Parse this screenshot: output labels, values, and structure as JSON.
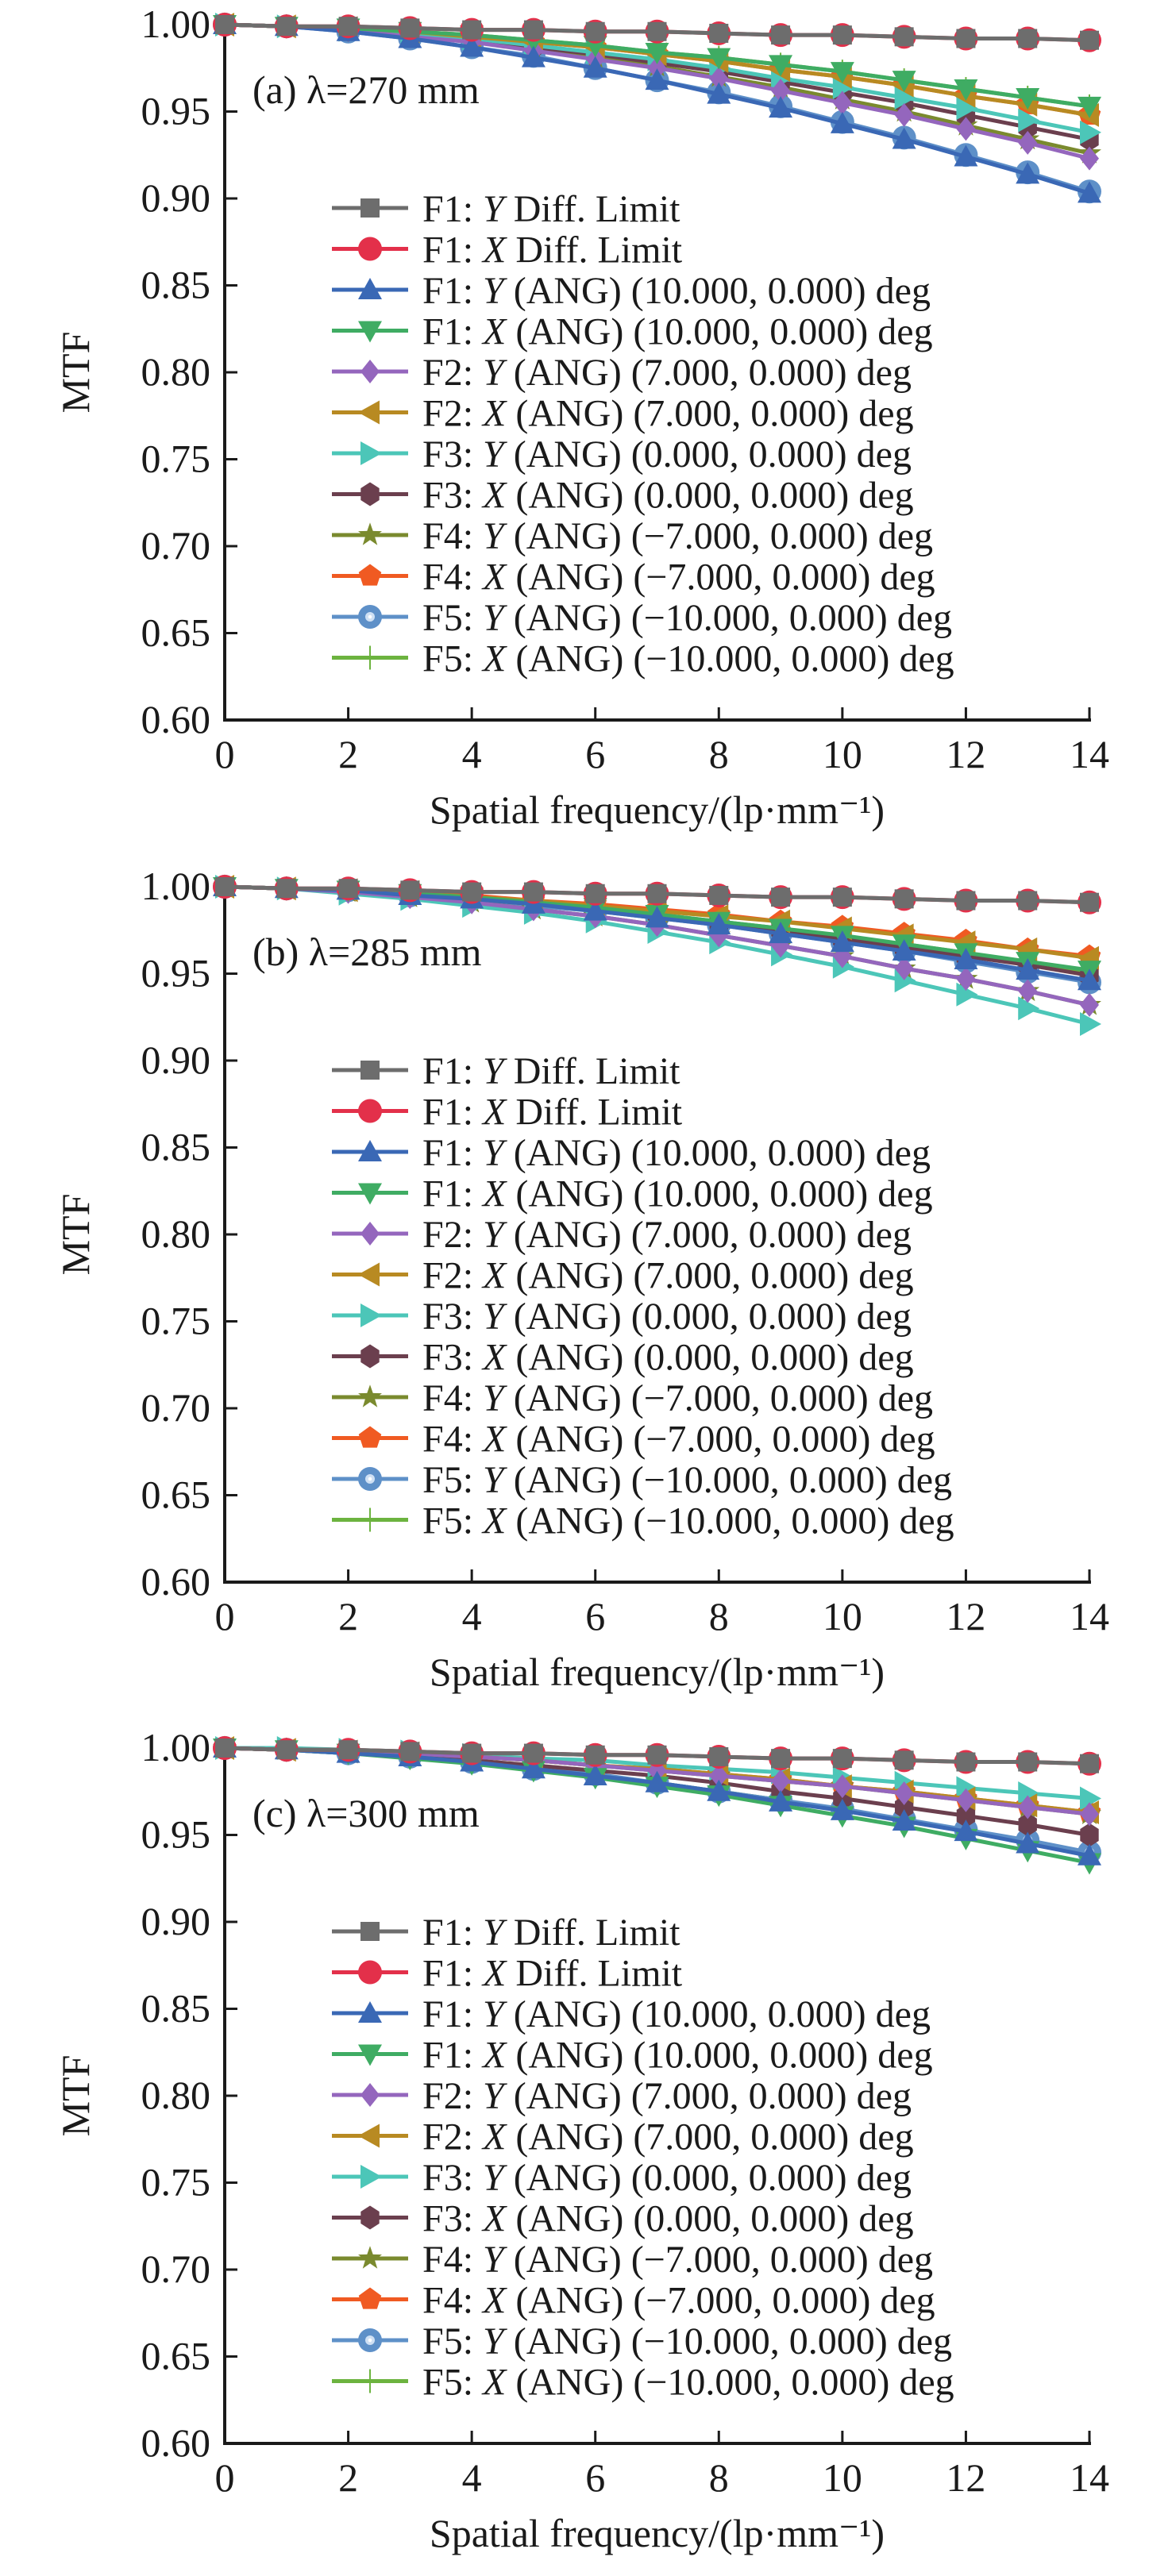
{
  "chart_data": [
    {
      "type": "line",
      "panel_label": "(a) λ=270 mm",
      "xlabel": "Spatial frequency/(lp·mm⁻¹)",
      "ylabel": "MTF",
      "xlim": [
        0,
        14
      ],
      "ylim": [
        0.6,
        1.0
      ],
      "xticks": [
        "0",
        "2",
        "4",
        "6",
        "8",
        "10",
        "12",
        "14"
      ],
      "yticks": [
        "0.60",
        "0.65",
        "0.70",
        "0.75",
        "0.80",
        "0.85",
        "0.90",
        "0.95",
        "1.00"
      ],
      "legend_position": "center",
      "x": [
        0,
        1,
        2,
        3,
        4,
        5,
        6,
        7,
        8,
        9,
        10,
        11,
        12,
        13,
        14
      ],
      "series": [
        {
          "key": "f1y_diff",
          "values": [
            1.0,
            0.999,
            0.999,
            0.998,
            0.997,
            0.997,
            0.996,
            0.996,
            0.995,
            0.994,
            0.994,
            0.993,
            0.992,
            0.992,
            0.991
          ]
        },
        {
          "key": "f1x_diff",
          "values": [
            1.0,
            0.999,
            0.999,
            0.998,
            0.997,
            0.997,
            0.996,
            0.996,
            0.995,
            0.994,
            0.994,
            0.993,
            0.992,
            0.992,
            0.991
          ]
        },
        {
          "key": "f1y_ang10",
          "values": [
            1.0,
            0.999,
            0.996,
            0.992,
            0.987,
            0.981,
            0.975,
            0.968,
            0.96,
            0.952,
            0.943,
            0.934,
            0.924,
            0.914,
            0.903
          ]
        },
        {
          "key": "f1x_ang10",
          "values": [
            1.0,
            0.999,
            0.998,
            0.996,
            0.994,
            0.991,
            0.988,
            0.984,
            0.981,
            0.977,
            0.973,
            0.968,
            0.963,
            0.958,
            0.953
          ]
        },
        {
          "key": "f2y_ang7",
          "values": [
            1.0,
            0.999,
            0.997,
            0.993,
            0.99,
            0.985,
            0.98,
            0.975,
            0.969,
            0.962,
            0.955,
            0.948,
            0.94,
            0.932,
            0.923
          ]
        },
        {
          "key": "f2x_ang7",
          "values": [
            1.0,
            0.999,
            0.998,
            0.996,
            0.993,
            0.99,
            0.987,
            0.983,
            0.979,
            0.974,
            0.97,
            0.965,
            0.959,
            0.954,
            0.948
          ]
        },
        {
          "key": "f3y_ang0",
          "values": [
            1.0,
            0.999,
            0.997,
            0.995,
            0.992,
            0.988,
            0.984,
            0.98,
            0.975,
            0.969,
            0.964,
            0.958,
            0.952,
            0.945,
            0.938
          ]
        },
        {
          "key": "f3x_ang0",
          "values": [
            1.0,
            0.999,
            0.997,
            0.994,
            0.991,
            0.987,
            0.983,
            0.978,
            0.973,
            0.967,
            0.961,
            0.955,
            0.948,
            0.941,
            0.934
          ]
        },
        {
          "key": "f4y_angm7",
          "values": [
            1.0,
            0.999,
            0.997,
            0.994,
            0.99,
            0.986,
            0.981,
            0.976,
            0.97,
            0.964,
            0.957,
            0.95,
            0.942,
            0.934,
            0.926
          ]
        },
        {
          "key": "f4x_angm7",
          "values": [
            1.0,
            0.999,
            0.998,
            0.996,
            0.993,
            0.99,
            0.987,
            0.983,
            0.979,
            0.974,
            0.97,
            0.965,
            0.959,
            0.954,
            0.948
          ]
        },
        {
          "key": "f5y_angm10",
          "values": [
            1.0,
            0.999,
            0.996,
            0.992,
            0.987,
            0.982,
            0.975,
            0.968,
            0.961,
            0.953,
            0.944,
            0.935,
            0.925,
            0.915,
            0.904
          ]
        },
        {
          "key": "f5x_angm10",
          "values": [
            1.0,
            0.999,
            0.998,
            0.996,
            0.994,
            0.991,
            0.988,
            0.984,
            0.981,
            0.977,
            0.973,
            0.968,
            0.963,
            0.958,
            0.953
          ]
        }
      ]
    },
    {
      "type": "line",
      "panel_label": "(b) λ=285 mm",
      "xlabel": "Spatial frequency/(lp·mm⁻¹)",
      "ylabel": "MTF",
      "xlim": [
        0,
        14
      ],
      "ylim": [
        0.6,
        1.0
      ],
      "xticks": [
        "0",
        "2",
        "4",
        "6",
        "8",
        "10",
        "12",
        "14"
      ],
      "yticks": [
        "0.60",
        "0.65",
        "0.70",
        "0.75",
        "0.80",
        "0.85",
        "0.90",
        "0.95",
        "1.00"
      ],
      "legend_position": "center",
      "x": [
        0,
        1,
        2,
        3,
        4,
        5,
        6,
        7,
        8,
        9,
        10,
        11,
        12,
        13,
        14
      ],
      "series": [
        {
          "key": "f1y_diff",
          "values": [
            1.0,
            0.999,
            0.999,
            0.998,
            0.997,
            0.997,
            0.996,
            0.996,
            0.995,
            0.994,
            0.994,
            0.993,
            0.992,
            0.992,
            0.991
          ]
        },
        {
          "key": "f1x_diff",
          "values": [
            1.0,
            0.999,
            0.999,
            0.998,
            0.997,
            0.997,
            0.996,
            0.996,
            0.995,
            0.994,
            0.994,
            0.993,
            0.992,
            0.992,
            0.991
          ]
        },
        {
          "key": "f1y_ang10",
          "values": [
            1.0,
            0.999,
            0.998,
            0.995,
            0.993,
            0.99,
            0.986,
            0.982,
            0.978,
            0.973,
            0.968,
            0.963,
            0.958,
            0.952,
            0.946
          ]
        },
        {
          "key": "f1x_ang10",
          "values": [
            1.0,
            0.999,
            0.998,
            0.996,
            0.994,
            0.991,
            0.988,
            0.984,
            0.98,
            0.976,
            0.972,
            0.967,
            0.962,
            0.957,
            0.952
          ]
        },
        {
          "key": "f2y_ang7",
          "values": [
            1.0,
            0.999,
            0.997,
            0.994,
            0.991,
            0.987,
            0.983,
            0.978,
            0.972,
            0.966,
            0.96,
            0.953,
            0.947,
            0.94,
            0.932
          ]
        },
        {
          "key": "f2x_ang7",
          "values": [
            1.0,
            0.999,
            0.998,
            0.997,
            0.994,
            0.992,
            0.989,
            0.986,
            0.983,
            0.98,
            0.976,
            0.972,
            0.968,
            0.964,
            0.959
          ]
        },
        {
          "key": "f3y_ang0",
          "values": [
            1.0,
            0.999,
            0.996,
            0.993,
            0.989,
            0.985,
            0.98,
            0.974,
            0.968,
            0.961,
            0.954,
            0.946,
            0.938,
            0.93,
            0.921
          ]
        },
        {
          "key": "f3x_ang0",
          "values": [
            1.0,
            0.999,
            0.998,
            0.996,
            0.993,
            0.99,
            0.987,
            0.983,
            0.979,
            0.975,
            0.97,
            0.965,
            0.96,
            0.955,
            0.949
          ]
        },
        {
          "key": "f4y_angm7",
          "values": [
            1.0,
            0.999,
            0.997,
            0.994,
            0.991,
            0.987,
            0.983,
            0.978,
            0.972,
            0.966,
            0.96,
            0.953,
            0.947,
            0.94,
            0.932
          ]
        },
        {
          "key": "f4x_angm7",
          "values": [
            1.0,
            0.999,
            0.998,
            0.997,
            0.995,
            0.992,
            0.99,
            0.987,
            0.984,
            0.98,
            0.977,
            0.973,
            0.969,
            0.964,
            0.96
          ]
        },
        {
          "key": "f5y_angm10",
          "values": [
            1.0,
            0.999,
            0.998,
            0.995,
            0.993,
            0.989,
            0.986,
            0.982,
            0.978,
            0.973,
            0.968,
            0.963,
            0.957,
            0.951,
            0.945
          ]
        },
        {
          "key": "f5x_angm10",
          "values": [
            1.0,
            0.999,
            0.998,
            0.996,
            0.993,
            0.991,
            0.987,
            0.984,
            0.98,
            0.976,
            0.971,
            0.967,
            0.962,
            0.956,
            0.951
          ]
        }
      ]
    },
    {
      "type": "line",
      "panel_label": "(c) λ=300 mm",
      "xlabel": "Spatial frequency/(lp·mm⁻¹)",
      "ylabel": "MTF",
      "xlim": [
        0,
        14
      ],
      "ylim": [
        0.6,
        1.0
      ],
      "xticks": [
        "0",
        "2",
        "4",
        "6",
        "8",
        "10",
        "12",
        "14"
      ],
      "yticks": [
        "0.60",
        "0.65",
        "0.70",
        "0.75",
        "0.80",
        "0.85",
        "0.90",
        "0.95",
        "1.00"
      ],
      "legend_position": "center",
      "x": [
        0,
        1,
        2,
        3,
        4,
        5,
        6,
        7,
        8,
        9,
        10,
        11,
        12,
        13,
        14
      ],
      "series": [
        {
          "key": "f1y_diff",
          "values": [
            1.0,
            0.999,
            0.999,
            0.998,
            0.997,
            0.997,
            0.996,
            0.996,
            0.995,
            0.994,
            0.994,
            0.993,
            0.992,
            0.992,
            0.991
          ]
        },
        {
          "key": "f1x_diff",
          "values": [
            1.0,
            0.999,
            0.999,
            0.998,
            0.997,
            0.997,
            0.996,
            0.996,
            0.995,
            0.994,
            0.994,
            0.993,
            0.992,
            0.992,
            0.991
          ]
        },
        {
          "key": "f1y_ang10",
          "values": [
            1.0,
            0.999,
            0.997,
            0.995,
            0.992,
            0.988,
            0.984,
            0.98,
            0.975,
            0.969,
            0.964,
            0.958,
            0.952,
            0.945,
            0.938
          ]
        },
        {
          "key": "f1x_ang10",
          "values": [
            1.0,
            0.999,
            0.997,
            0.994,
            0.991,
            0.987,
            0.983,
            0.978,
            0.973,
            0.967,
            0.961,
            0.955,
            0.948,
            0.941,
            0.934
          ]
        },
        {
          "key": "f2y_ang7",
          "values": [
            1.0,
            0.999,
            0.998,
            0.997,
            0.995,
            0.993,
            0.99,
            0.987,
            0.984,
            0.981,
            0.978,
            0.974,
            0.97,
            0.966,
            0.962
          ]
        },
        {
          "key": "f2x_ang7",
          "values": [
            1.0,
            0.999,
            0.998,
            0.997,
            0.995,
            0.993,
            0.99,
            0.988,
            0.985,
            0.982,
            0.978,
            0.975,
            0.971,
            0.967,
            0.963
          ]
        },
        {
          "key": "f3y_ang0",
          "values": [
            1.0,
            1.0,
            0.999,
            0.998,
            0.996,
            0.994,
            0.993,
            0.99,
            0.988,
            0.986,
            0.983,
            0.98,
            0.977,
            0.974,
            0.971
          ]
        },
        {
          "key": "f3x_ang0",
          "values": [
            1.0,
            0.999,
            0.998,
            0.996,
            0.993,
            0.99,
            0.987,
            0.984,
            0.98,
            0.975,
            0.971,
            0.966,
            0.961,
            0.956,
            0.95
          ]
        },
        {
          "key": "f4y_angm7",
          "values": [
            1.0,
            0.999,
            0.998,
            0.997,
            0.995,
            0.993,
            0.99,
            0.987,
            0.984,
            0.981,
            0.978,
            0.974,
            0.97,
            0.966,
            0.962
          ]
        },
        {
          "key": "f4x_angm7",
          "values": [
            1.0,
            0.999,
            0.998,
            0.997,
            0.995,
            0.993,
            0.99,
            0.988,
            0.985,
            0.982,
            0.978,
            0.975,
            0.971,
            0.967,
            0.963
          ]
        },
        {
          "key": "f5y_angm10",
          "values": [
            1.0,
            0.999,
            0.997,
            0.995,
            0.992,
            0.988,
            0.985,
            0.98,
            0.975,
            0.97,
            0.965,
            0.959,
            0.953,
            0.947,
            0.94
          ]
        },
        {
          "key": "f5x_angm10",
          "values": [
            1.0,
            0.999,
            0.997,
            0.995,
            0.992,
            0.988,
            0.984,
            0.98,
            0.975,
            0.97,
            0.964,
            0.959,
            0.952,
            0.946,
            0.939
          ]
        }
      ]
    }
  ],
  "legend": [
    {
      "key": "f1y_diff",
      "prefix": "F1: ",
      "axis": "Y",
      "suffix": " Diff. Limit",
      "color": "#6d6d6d",
      "marker": "square"
    },
    {
      "key": "f1x_diff",
      "prefix": "F1: ",
      "axis": "X",
      "suffix": " Diff. Limit",
      "color": "#e3304a",
      "marker": "circle"
    },
    {
      "key": "f1y_ang10",
      "prefix": "F1: ",
      "axis": "Y",
      "suffix": " (ANG) (10.000, 0.000) deg",
      "color": "#3a68b5",
      "marker": "triangle-up"
    },
    {
      "key": "f1x_ang10",
      "prefix": "F1: ",
      "axis": "X",
      "suffix": " (ANG) (10.000, 0.000) deg",
      "color": "#3fac63",
      "marker": "triangle-down"
    },
    {
      "key": "f2y_ang7",
      "prefix": "F2: ",
      "axis": "Y",
      "suffix": " (ANG) (7.000, 0.000) deg",
      "color": "#9466bd",
      "marker": "diamond"
    },
    {
      "key": "f2x_ang7",
      "prefix": "F2: ",
      "axis": "X",
      "suffix": " (ANG) (7.000, 0.000) deg",
      "color": "#b88a22",
      "marker": "triangle-left"
    },
    {
      "key": "f3y_ang0",
      "prefix": "F3: ",
      "axis": "Y",
      "suffix": " (ANG) (0.000, 0.000) deg",
      "color": "#4cc6b8",
      "marker": "triangle-right"
    },
    {
      "key": "f3x_ang0",
      "prefix": "F3: ",
      "axis": "X",
      "suffix": " (ANG) (0.000, 0.000) deg",
      "color": "#6b3f4e",
      "marker": "hexagon"
    },
    {
      "key": "f4y_angm7",
      "prefix": "F4: ",
      "axis": "Y",
      "suffix": " (ANG) (−7.000, 0.000) deg",
      "color": "#7a8a2e",
      "marker": "star"
    },
    {
      "key": "f4x_angm7",
      "prefix": "F4: ",
      "axis": "X",
      "suffix": " (ANG) (−7.000, 0.000) deg",
      "color": "#f05a22",
      "marker": "pentagon"
    },
    {
      "key": "f5y_angm10",
      "prefix": "F5: ",
      "axis": "Y",
      "suffix": " (ANG) (−10.000, 0.000) deg",
      "color": "#5e90c8",
      "marker": "sphere"
    },
    {
      "key": "f5x_angm10",
      "prefix": "F5: ",
      "axis": "X",
      "suffix": " (ANG) (−10.000, 0.000) deg",
      "color": "#6cb33f",
      "marker": "plus"
    }
  ]
}
